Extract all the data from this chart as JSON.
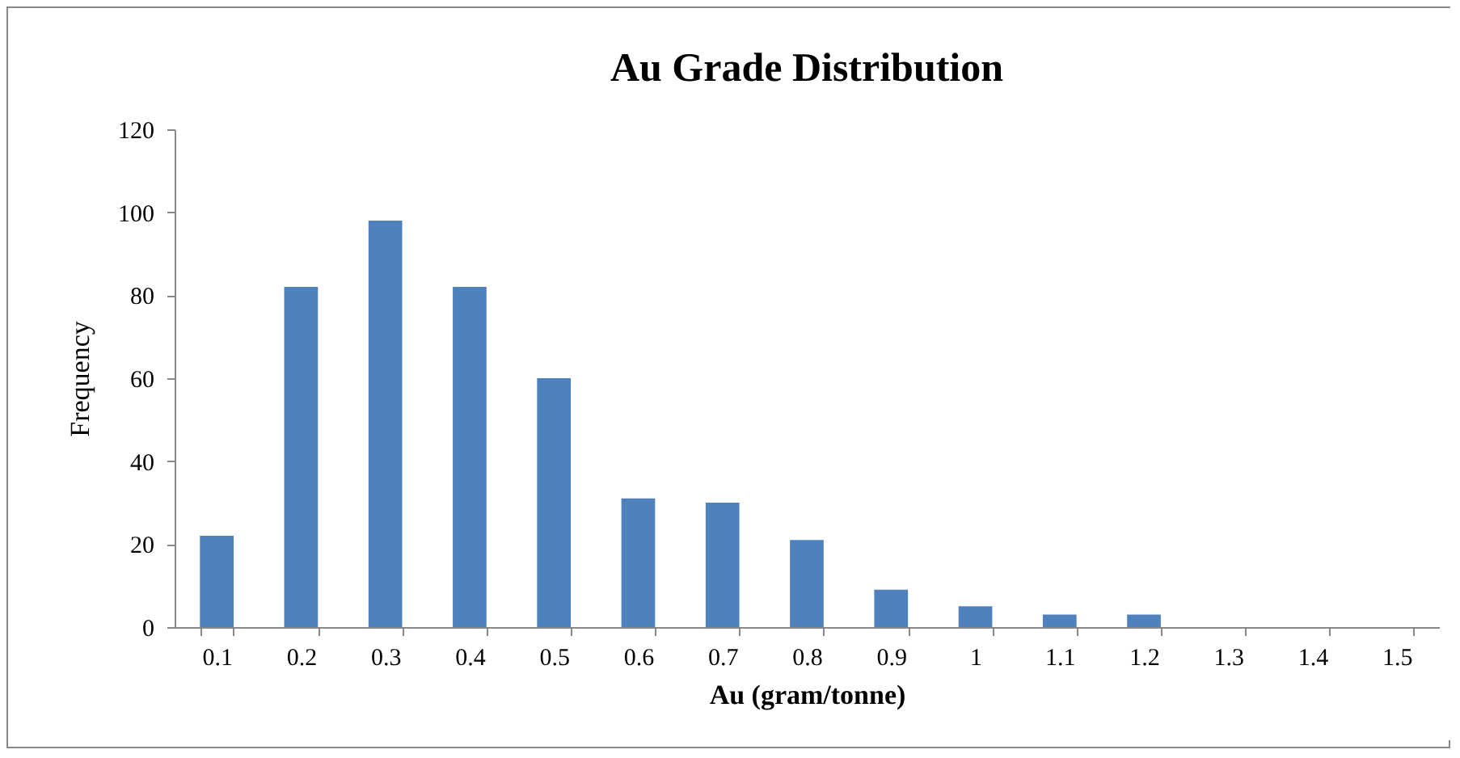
{
  "chart_data": {
    "type": "bar",
    "title": "Au Grade Distribution",
    "xlabel": "Au (gram/tonne)",
    "ylabel": "Frequency",
    "categories": [
      "0.1",
      "0.2",
      "0.3",
      "0.4",
      "0.5",
      "0.6",
      "0.7",
      "0.8",
      "0.9",
      "1",
      "1.1",
      "1.2",
      "1.3",
      "1.4",
      "1.5"
    ],
    "values": [
      22,
      82,
      98,
      82,
      60,
      31,
      30,
      21,
      9,
      5,
      3,
      3,
      0,
      0,
      0
    ],
    "color": "#4f81bd",
    "ylim": [
      0,
      120
    ],
    "yticks": [
      0,
      20,
      40,
      60,
      80,
      100,
      120
    ],
    "grid": false
  }
}
